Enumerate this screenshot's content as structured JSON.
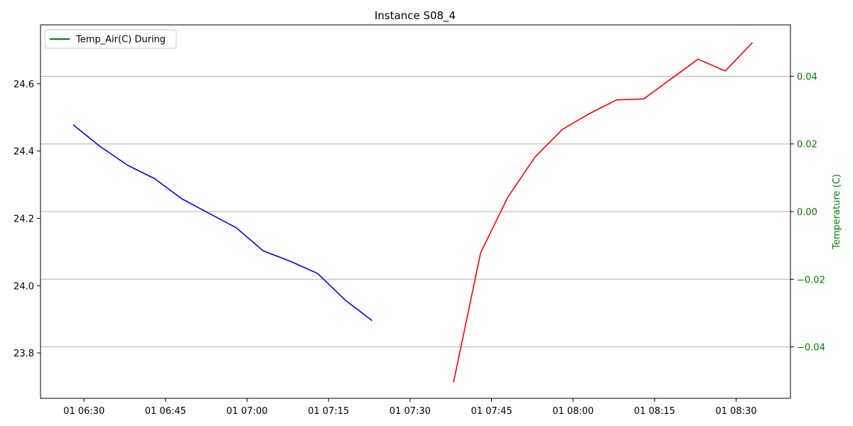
{
  "chart_data": {
    "type": "line",
    "title": "Instance S08_4",
    "ylabel_right": "Temperature (C)",
    "right_axis_color": "#008000",
    "legend": {
      "placement": "top-left",
      "entries": [
        {
          "label": "Temp_Air(C) During",
          "color": "#008000"
        }
      ]
    },
    "x_ticks": [
      "01 06:30",
      "01 06:45",
      "01 07:00",
      "01 07:15",
      "01 07:30",
      "01 07:45",
      "01 08:00",
      "01 08:15",
      "01 08:30"
    ],
    "xlim": [
      "01 06:22",
      "01 08:40"
    ],
    "left_yticks": [
      23.8,
      24.0,
      24.2,
      24.4,
      24.6
    ],
    "left_ylim": [
      23.665,
      24.775
    ],
    "right_yticks": [
      -0.04,
      -0.02,
      0.0,
      0.02,
      0.04
    ],
    "right_ylim": [
      -0.0552,
      0.0552
    ],
    "grid": "horizontal on right axis",
    "series": [
      {
        "axis": "left",
        "color": "#0000ff",
        "points": [
          {
            "x": "01 06:28",
            "y": 24.478
          },
          {
            "x": "01 06:33",
            "y": 24.413
          },
          {
            "x": "01 06:38",
            "y": 24.358
          },
          {
            "x": "01 06:43",
            "y": 24.318
          },
          {
            "x": "01 06:48",
            "y": 24.258
          },
          {
            "x": "01 06:53",
            "y": 24.215
          },
          {
            "x": "01 06:58",
            "y": 24.172
          },
          {
            "x": "01 07:03",
            "y": 24.103
          },
          {
            "x": "01 07:08",
            "y": 24.072
          },
          {
            "x": "01 07:13",
            "y": 24.036
          },
          {
            "x": "01 07:18",
            "y": 23.958
          },
          {
            "x": "01 07:23",
            "y": 23.896
          }
        ]
      },
      {
        "axis": "left",
        "color": "#ff0000",
        "points": [
          {
            "x": "01 07:38",
            "y": 23.712
          },
          {
            "x": "01 07:43",
            "y": 24.098
          },
          {
            "x": "01 07:48",
            "y": 24.263
          },
          {
            "x": "01 07:53",
            "y": 24.382
          },
          {
            "x": "01 07:58",
            "y": 24.464
          },
          {
            "x": "01 08:03",
            "y": 24.511
          },
          {
            "x": "01 08:08",
            "y": 24.552
          },
          {
            "x": "01 08:13",
            "y": 24.555
          },
          {
            "x": "01 08:18",
            "y": 24.614
          },
          {
            "x": "01 08:23",
            "y": 24.673
          },
          {
            "x": "01 08:28",
            "y": 24.638
          },
          {
            "x": "01 08:33",
            "y": 24.722
          }
        ]
      }
    ]
  }
}
